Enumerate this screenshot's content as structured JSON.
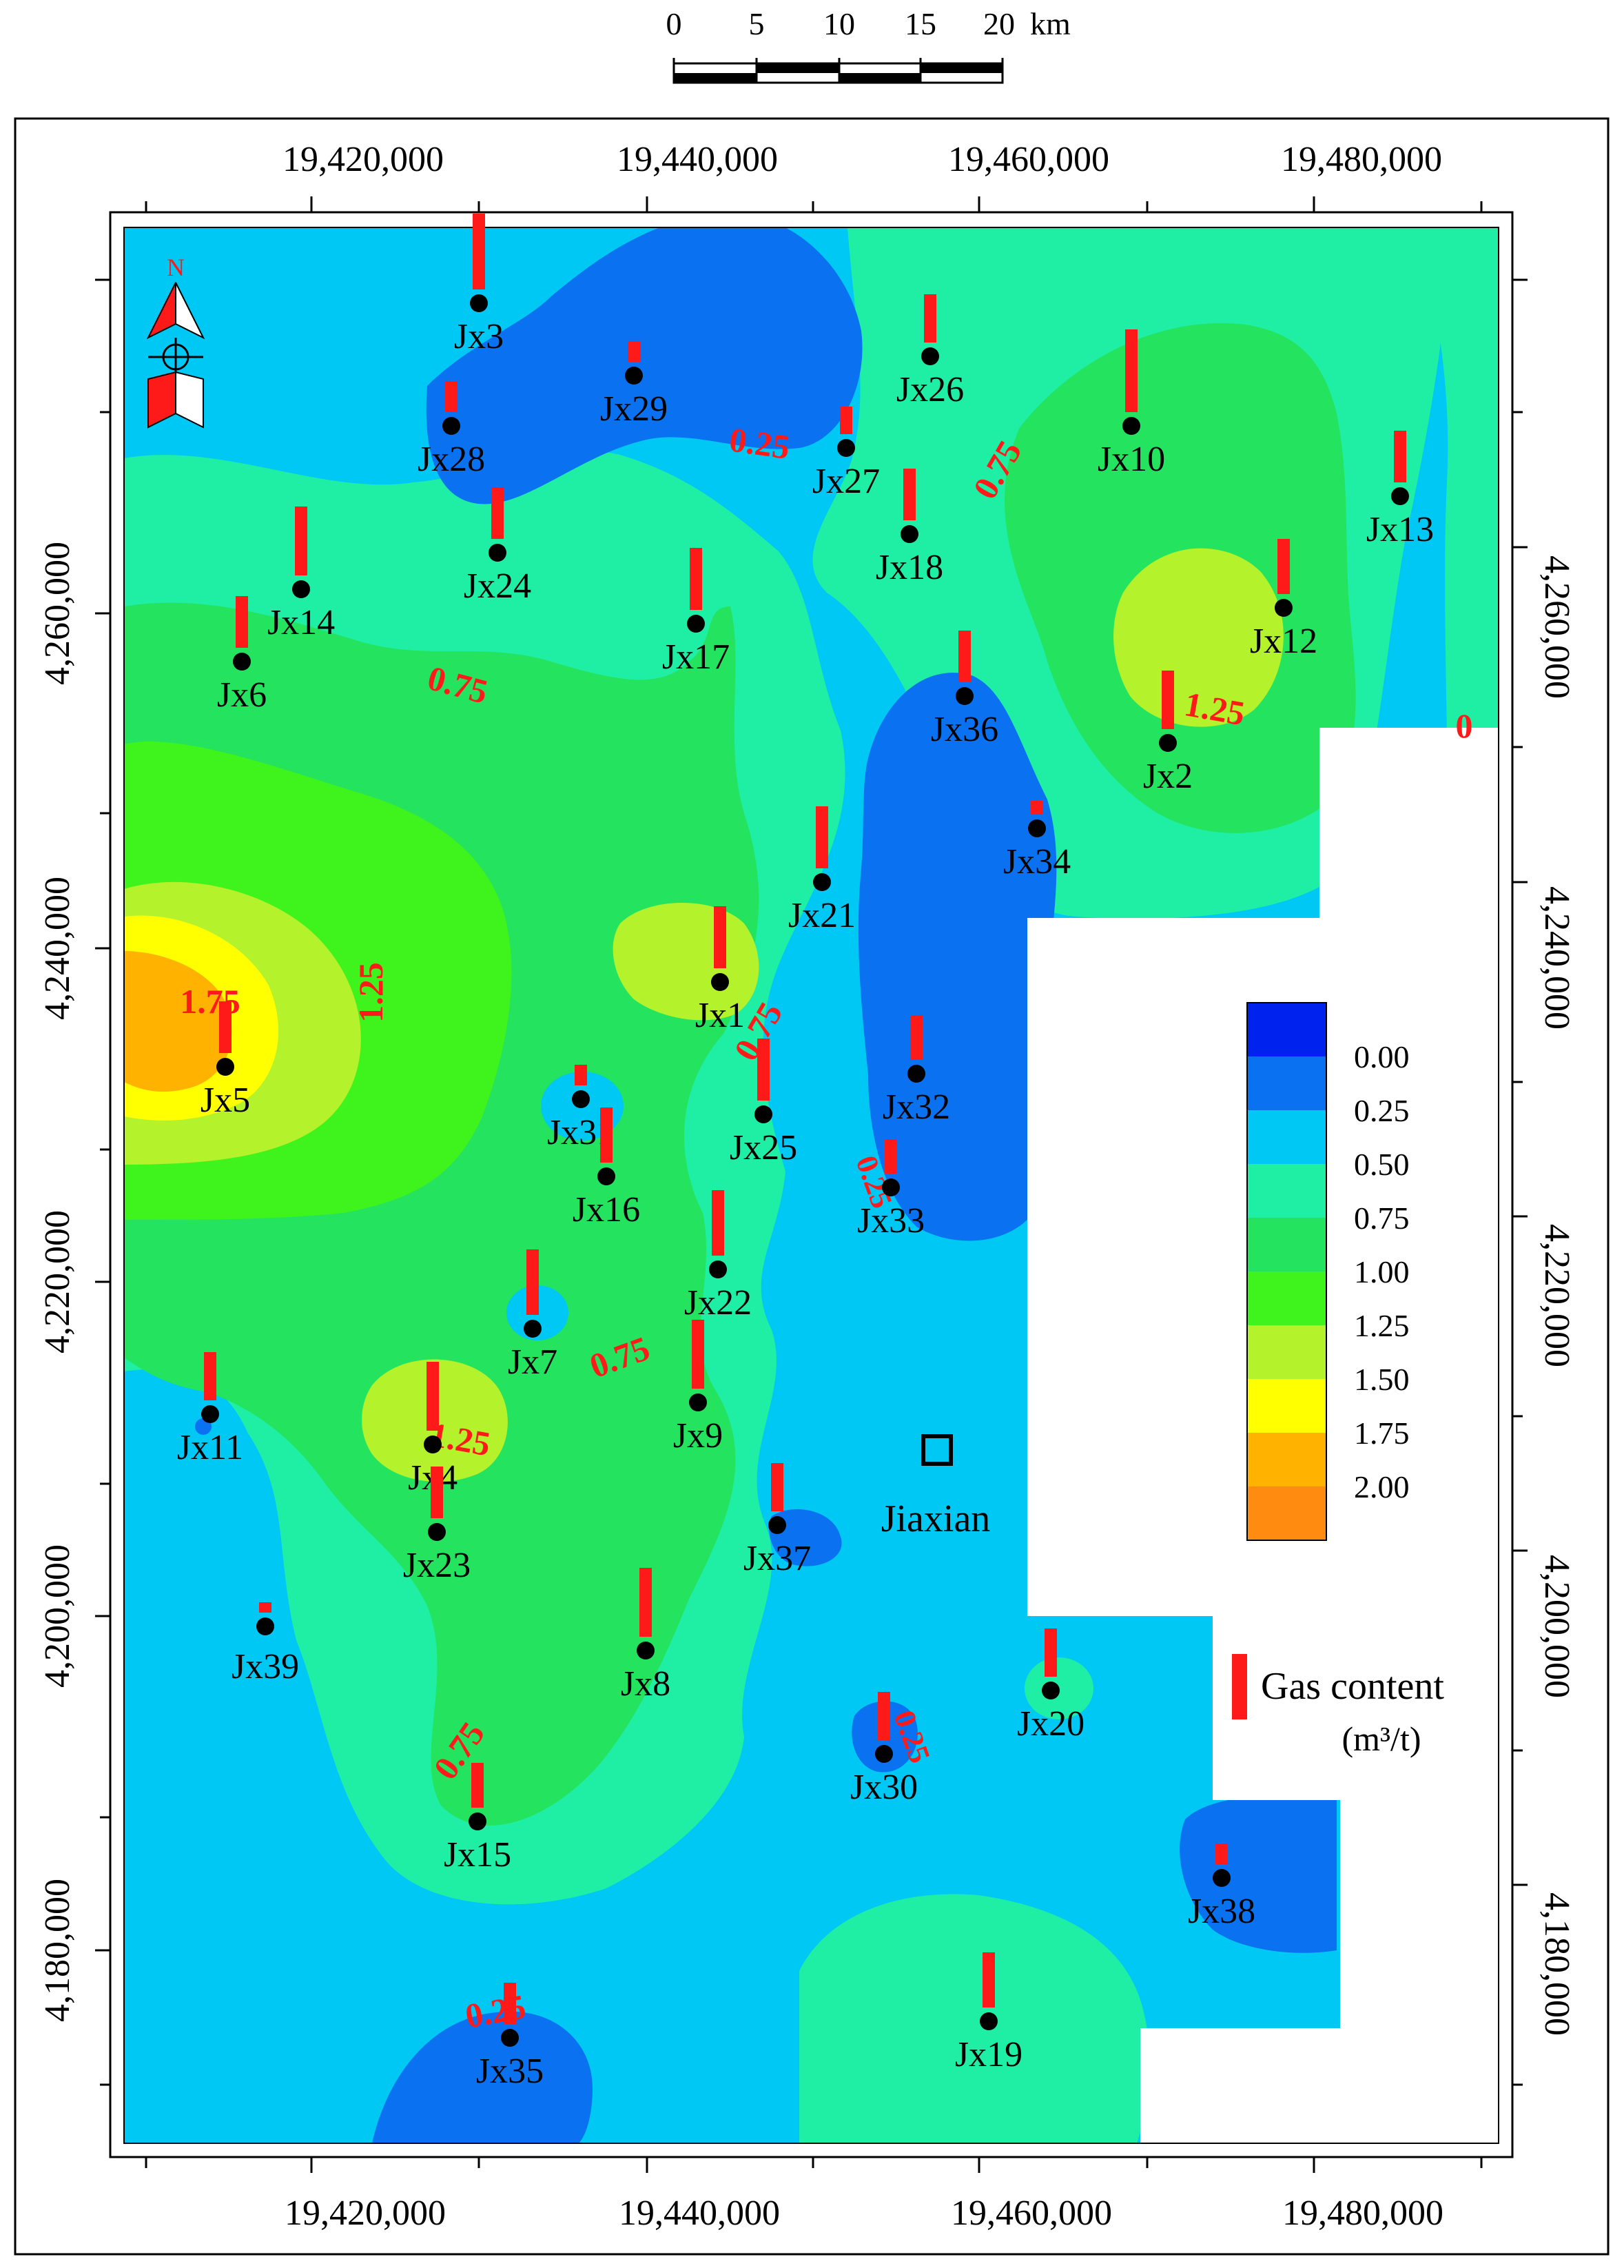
{
  "scale_bar": {
    "ticks": [
      "0",
      "5",
      "10",
      "15",
      "20"
    ],
    "unit": "km"
  },
  "x_axis_labels": [
    "19,420,000",
    "19,440,000",
    "19,460,000",
    "19,480,000"
  ],
  "y_axis_labels": [
    "4,260,000",
    "4,240,000",
    "4,220,000",
    "4,200,000",
    "4,180,000"
  ],
  "north_label": "N",
  "city_label": "Jiaxian",
  "legend": {
    "values": [
      "0.00",
      "0.25",
      "0.50",
      "0.75",
      "1.00",
      "1.25",
      "1.50",
      "1.75",
      "2.00"
    ],
    "colors": [
      "#0022ee",
      "#0a72f0",
      "#00c8f5",
      "#1fefa5",
      "#23e35f",
      "#3ff31c",
      "#b4f22b",
      "#ffff00",
      "#ffb300",
      "#ff8c10"
    ],
    "gas_label": "Gas content",
    "gas_unit": "(m³/t)"
  },
  "contour_labels": [
    "0.25",
    "0.75",
    "0.75",
    "1.25",
    "1.75",
    "1.25",
    "0.75",
    "0.75",
    "0.25",
    "1.25",
    "0.75",
    "0.25",
    "0.25",
    "0"
  ],
  "wells": [
    "Jx3",
    "Jx29",
    "Jx26",
    "Jx28",
    "Jx27",
    "Jx10",
    "Jx13",
    "Jx24",
    "Jx18",
    "Jx14",
    "Jx17",
    "Jx12",
    "Jx6",
    "Jx36",
    "Jx2",
    "Jx34",
    "Jx21",
    "Jx1",
    "Jx5",
    "Jx32",
    "Jx31",
    "Jx25",
    "Jx16",
    "Jx33",
    "Jx22",
    "Jx7",
    "Jx11",
    "Jx9",
    "Jx4",
    "Jx37",
    "Jx23",
    "Jx39",
    "Jx8",
    "Jx20",
    "Jx30",
    "Jx15",
    "Jx38",
    "Jx19",
    "Jx35"
  ]
}
